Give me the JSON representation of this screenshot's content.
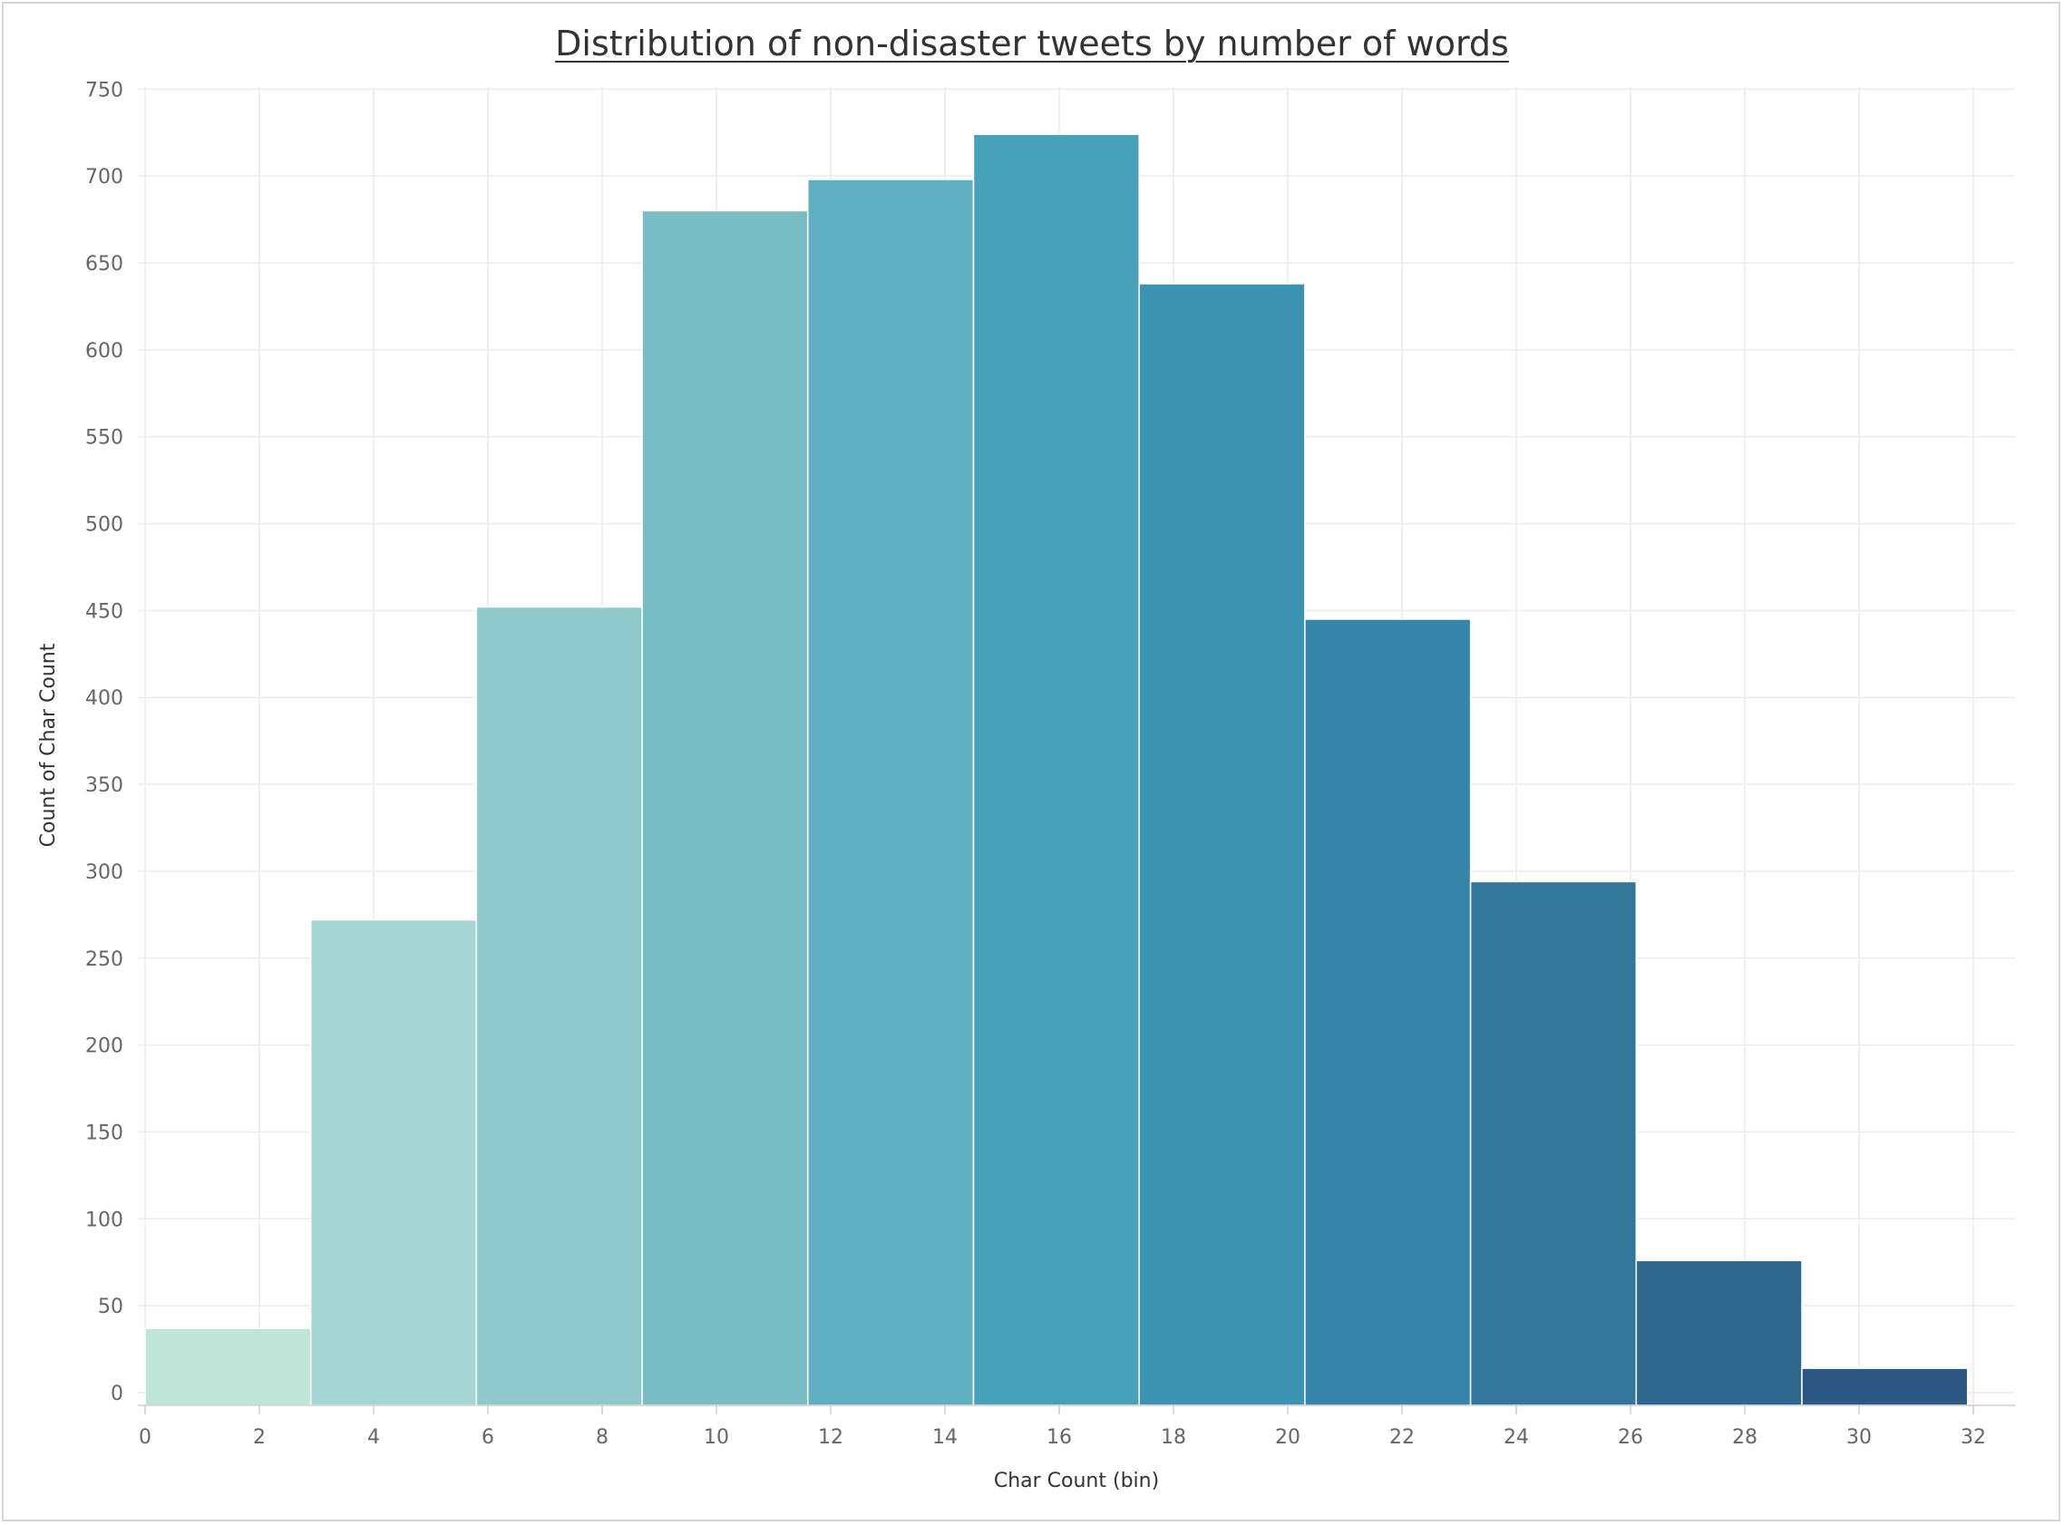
{
  "chart_data": {
    "type": "bar",
    "title": "Distribution of non-disaster tweets by number of words",
    "xlabel": "Char Count (bin)",
    "ylabel": "Count of Char Count",
    "x_ticks": [
      0,
      2,
      4,
      6,
      8,
      10,
      12,
      14,
      16,
      18,
      20,
      22,
      24,
      26,
      28,
      30,
      32
    ],
    "y_ticks": [
      0,
      50,
      100,
      150,
      200,
      250,
      300,
      350,
      400,
      450,
      500,
      550,
      600,
      650,
      700,
      750
    ],
    "xlim": [
      0,
      32.6
    ],
    "ylim": [
      -8,
      762
    ],
    "bins": [
      {
        "start": 0,
        "end": 2.9,
        "value": 37,
        "color": "#bfe4d8"
      },
      {
        "start": 2.9,
        "end": 5.8,
        "value": 272,
        "color": "#a6d6d3"
      },
      {
        "start": 5.8,
        "end": 8.7,
        "value": 452,
        "color": "#8fc9cc"
      },
      {
        "start": 8.7,
        "end": 11.6,
        "value": 680,
        "color": "#79bdc6"
      },
      {
        "start": 11.6,
        "end": 14.5,
        "value": 698,
        "color": "#60afc1"
      },
      {
        "start": 14.5,
        "end": 17.4,
        "value": 724,
        "color": "#46a1b9"
      },
      {
        "start": 17.4,
        "end": 20.3,
        "value": 638,
        "color": "#3b93b1"
      },
      {
        "start": 20.3,
        "end": 23.2,
        "value": 445,
        "color": "#3685a8"
      },
      {
        "start": 23.2,
        "end": 26.1,
        "value": 294,
        "color": "#32769c"
      },
      {
        "start": 26.1,
        "end": 29.0,
        "value": 76,
        "color": "#2f6690"
      },
      {
        "start": 29.0,
        "end": 31.9,
        "value": 14,
        "color": "#2c5883"
      }
    ],
    "grid": true,
    "legend": "none"
  }
}
